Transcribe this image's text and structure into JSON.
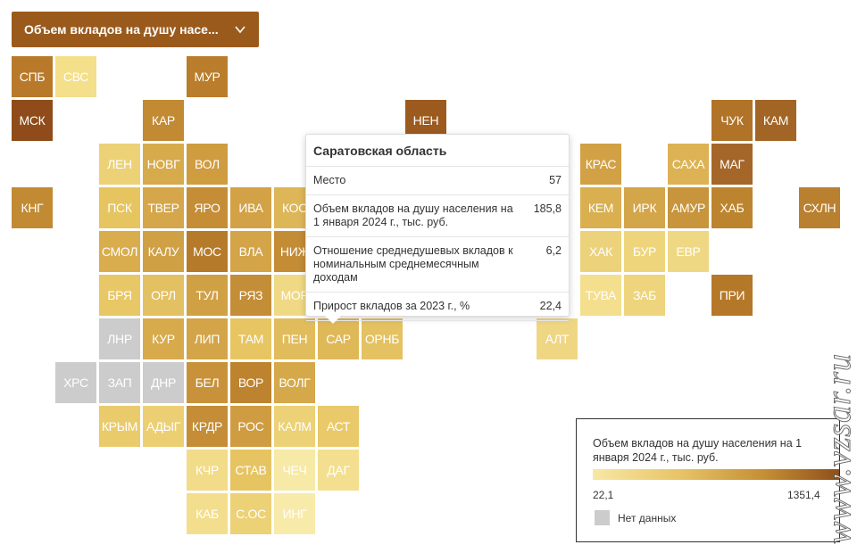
{
  "dropdown": {
    "label": "Объем вкладов на душу насе...",
    "icon": "chevron-down-icon"
  },
  "tiles": [
    {
      "abbr": "СПБ",
      "color": "#b87a2a"
    },
    {
      "abbr": "СВС",
      "color": "#f4df8a"
    },
    {
      "abbr": "МУР",
      "color": "#b97d2c"
    },
    {
      "abbr": "МСК",
      "color": "#8f4c1a"
    },
    {
      "abbr": "КАР",
      "color": "#c18a33"
    },
    {
      "abbr": "НЕН",
      "color": "#9c5a1f"
    },
    {
      "abbr": "ЧУК",
      "color": "#b07328"
    },
    {
      "abbr": "КАМ",
      "color": "#a26525"
    },
    {
      "abbr": "ЛЕН",
      "color": "#ecd176"
    },
    {
      "abbr": "НОВГ",
      "color": "#d7aa4c"
    },
    {
      "abbr": "ВОЛ",
      "color": "#cf9c40"
    },
    {
      "abbr": "КРАС",
      "color": "#d2a145"
    },
    {
      "abbr": "САХА",
      "color": "#dcb254"
    },
    {
      "abbr": "МАГ",
      "color": "#a5662a"
    },
    {
      "abbr": "КНГ",
      "color": "#c28a33"
    },
    {
      "abbr": "ПСК",
      "color": "#e6c460"
    },
    {
      "abbr": "ТВЕР",
      "color": "#d5a64a"
    },
    {
      "abbr": "ЯРО",
      "color": "#c48d36"
    },
    {
      "abbr": "ИВА",
      "color": "#d3a247"
    },
    {
      "abbr": "КОС",
      "color": "#ddb658"
    },
    {
      "abbr": "КЕМ",
      "color": "#d9af50"
    },
    {
      "abbr": "ИРК",
      "color": "#d4a64a"
    },
    {
      "abbr": "АМУР",
      "color": "#c8953d"
    },
    {
      "abbr": "ХАБ",
      "color": "#bd842f"
    },
    {
      "abbr": "СХЛН",
      "color": "#b98030"
    },
    {
      "abbr": "СМОЛ",
      "color": "#d9ad4e"
    },
    {
      "abbr": "КАЛУ",
      "color": "#d0a045"
    },
    {
      "abbr": "МОС",
      "color": "#b67a2b"
    },
    {
      "abbr": "ВЛА",
      "color": "#d3a448"
    },
    {
      "abbr": "НИЖ",
      "color": "#c38c35"
    },
    {
      "abbr": "ХАК",
      "color": "#ecd27a"
    },
    {
      "abbr": "БУР",
      "color": "#eed57c"
    },
    {
      "abbr": "ЕВР",
      "color": "#efd884"
    },
    {
      "abbr": "БРЯ",
      "color": "#e8c767"
    },
    {
      "abbr": "ОРЛ",
      "color": "#e3c061"
    },
    {
      "abbr": "ТУЛ",
      "color": "#d0a045"
    },
    {
      "abbr": "РЯЗ",
      "color": "#c48d37"
    },
    {
      "abbr": "МОР",
      "color": "#f0d985"
    },
    {
      "abbr": "ТУВА",
      "color": "#f3df8e"
    },
    {
      "abbr": "ЗАБ",
      "color": "#eed47c"
    },
    {
      "abbr": "ПРИ",
      "color": "#b57828"
    },
    {
      "abbr": "ЛНР",
      "color": "#cccccc"
    },
    {
      "abbr": "КУР",
      "color": "#d7aa4c"
    },
    {
      "abbr": "ЛИП",
      "color": "#d3a448"
    },
    {
      "abbr": "ТАМ",
      "color": "#e7c563"
    },
    {
      "abbr": "ПЕН",
      "color": "#e1bc5c"
    },
    {
      "abbr": "САР",
      "color": "#dfb858"
    },
    {
      "abbr": "ОРНБ",
      "color": "#e4c161"
    },
    {
      "abbr": "АЛТ",
      "color": "#efd683"
    },
    {
      "abbr": "ХРС",
      "color": "#cccccc"
    },
    {
      "abbr": "ЗАП",
      "color": "#cccccc"
    },
    {
      "abbr": "ДНР",
      "color": "#cccccc"
    },
    {
      "abbr": "БЕЛ",
      "color": "#c8923b"
    },
    {
      "abbr": "ВОР",
      "color": "#bd832f"
    },
    {
      "abbr": "ВОЛГ",
      "color": "#d5a84a"
    },
    {
      "abbr": "КРЫМ",
      "color": "#eacb6c"
    },
    {
      "abbr": "АДЫГ",
      "color": "#eccf73"
    },
    {
      "abbr": "КРДР",
      "color": "#c48d36"
    },
    {
      "abbr": "РОС",
      "color": "#cf9c41"
    },
    {
      "abbr": "КАЛМ",
      "color": "#ecd176"
    },
    {
      "abbr": "АСТ",
      "color": "#e9c969"
    },
    {
      "abbr": "КЧР",
      "color": "#f2dc89"
    },
    {
      "abbr": "СТАВ",
      "color": "#e6c462"
    },
    {
      "abbr": "ЧЕЧ",
      "color": "#f7e9a6"
    },
    {
      "abbr": "ДАГ",
      "color": "#f3df8f"
    },
    {
      "abbr": "КАБ",
      "color": "#f3de8d"
    },
    {
      "abbr": "С.ОС",
      "color": "#ecd176"
    },
    {
      "abbr": "ИНГ",
      "color": "#f8ebaa"
    }
  ],
  "tooltip": {
    "title": "Саратовская область",
    "rows": [
      {
        "label": "Место",
        "value": "57"
      },
      {
        "label": "Объем вкладов на душу населения на 1 января 2024 г., тыс. руб.",
        "value": "185,8"
      },
      {
        "label": "Отношение среднедушевых вкладов к номинальным среднемесячным доходам",
        "value": "6,2"
      },
      {
        "label": "Прирост вкладов за 2023 г., %",
        "value": "22,4"
      }
    ]
  },
  "legend": {
    "title": "Объем вкладов на душу населения на 1 января 2024 г., тыс. руб.",
    "min": "22,1",
    "max": "1351,4",
    "no_data": "Нет данных",
    "gradient": [
      "#f7e8a4",
      "#e8c468",
      "#c48e34",
      "#8f4f1a"
    ],
    "no_data_color": "#cccccc"
  },
  "watermark": "www.vzsar.ru"
}
